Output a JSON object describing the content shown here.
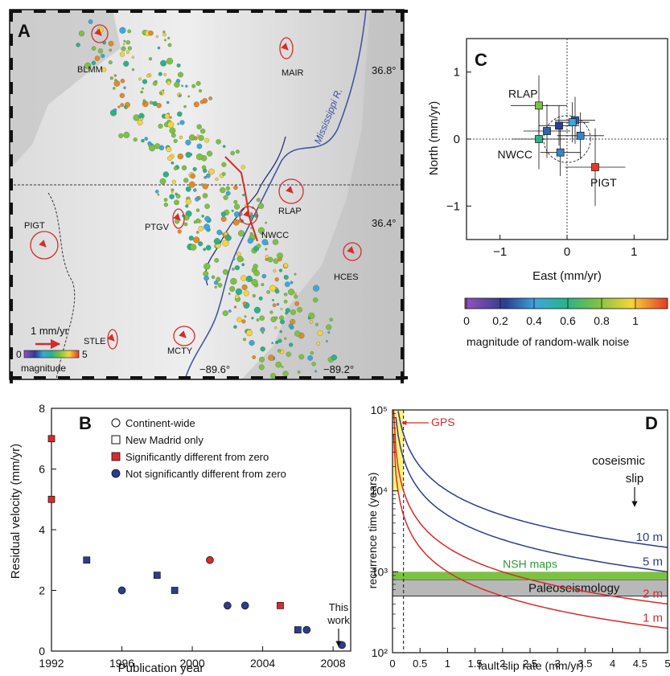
{
  "chart_data": [
    {
      "panel": "A",
      "type": "map",
      "panel_label": "A",
      "lat_labels": [
        "36.8°",
        "36.4°"
      ],
      "lon_labels": [
        "−89.6°",
        "−89.2°"
      ],
      "river_label": "Mississippi R.",
      "scale_label": "1 mm/yr",
      "colorbar": {
        "min_label": "0",
        "max_label": "5",
        "label": "magnitude"
      },
      "stations": [
        {
          "name": "BLMM"
        },
        {
          "name": "MAIR"
        },
        {
          "name": "PIGT"
        },
        {
          "name": "PTGV"
        },
        {
          "name": "NWCC"
        },
        {
          "name": "RLAP"
        },
        {
          "name": "HCES"
        },
        {
          "name": "STLE"
        },
        {
          "name": "MCTY"
        }
      ]
    },
    {
      "panel": "B",
      "type": "scatter",
      "panel_label": "B",
      "xlabel": "Publication year",
      "ylabel": "Residual velocity (mm/yr)",
      "xlim": [
        1992,
        2009
      ],
      "ylim": [
        0,
        8
      ],
      "xticks": [
        "1992",
        "1996",
        "2000",
        "2004",
        "2008"
      ],
      "yticks": [
        "0",
        "2",
        "4",
        "6",
        "8"
      ],
      "legend": [
        {
          "label": "Continent-wide",
          "marker": "circle-open"
        },
        {
          "label": "New Madrid only",
          "marker": "square-open"
        },
        {
          "label": "Significantly different from zero",
          "marker": "square-red"
        },
        {
          "label": "Not significantly different from zero",
          "marker": "circle-blue"
        }
      ],
      "annotation": [
        "This",
        "work"
      ],
      "points": [
        {
          "x": 1992,
          "y": 7.0,
          "shape": "square",
          "sig": true
        },
        {
          "x": 1992,
          "y": 5.0,
          "shape": "square",
          "sig": true
        },
        {
          "x": 1994,
          "y": 3.0,
          "shape": "square",
          "sig": false
        },
        {
          "x": 1996,
          "y": 2.0,
          "shape": "circle",
          "sig": false
        },
        {
          "x": 1998,
          "y": 2.5,
          "shape": "square",
          "sig": false
        },
        {
          "x": 1999,
          "y": 2.0,
          "shape": "square",
          "sig": false
        },
        {
          "x": 2001,
          "y": 3.0,
          "shape": "circle",
          "sig": true
        },
        {
          "x": 2002,
          "y": 1.5,
          "shape": "circle",
          "sig": false
        },
        {
          "x": 2003,
          "y": 1.5,
          "shape": "circle",
          "sig": false
        },
        {
          "x": 2005,
          "y": 1.5,
          "shape": "square",
          "sig": true
        },
        {
          "x": 2006,
          "y": 0.7,
          "shape": "square",
          "sig": false
        },
        {
          "x": 2006.5,
          "y": 0.7,
          "shape": "circle",
          "sig": false
        },
        {
          "x": 2008.5,
          "y": 0.2,
          "shape": "circle",
          "sig": false
        }
      ],
      "colors": {
        "sig": "#d62b2b",
        "nonsig": "#2b3d8f"
      }
    },
    {
      "panel": "C",
      "type": "scatter",
      "panel_label": "C",
      "xlabel": "East (mm/yr)",
      "ylabel": "North (mm/yr)",
      "xlim": [
        -1.5,
        1.5
      ],
      "ylim": [
        -1.5,
        1.5
      ],
      "xticks": [
        "−1",
        "0",
        "1"
      ],
      "yticks": [
        "−1",
        "0",
        "1"
      ],
      "colorbar": {
        "label": "magnitude of random-walk noise",
        "ticks": [
          "0",
          "0.2",
          "0.4",
          "0.6",
          "0.8",
          "1"
        ]
      },
      "points": [
        {
          "name": "RLAP",
          "x": -0.42,
          "y": 0.5,
          "ex": 0.42,
          "ey": 0.45,
          "color": "#7cc242"
        },
        {
          "name": "",
          "x": 0.12,
          "y": 0.28,
          "ex": 0.3,
          "ey": 0.35,
          "color": "#2f64b4"
        },
        {
          "name": "",
          "x": 0.08,
          "y": 0.25,
          "ex": 0.25,
          "ey": 0.3,
          "color": "#3ba7dd"
        },
        {
          "name": "",
          "x": -0.12,
          "y": 0.2,
          "ex": 0.3,
          "ey": 0.3,
          "color": "#2a3e93"
        },
        {
          "name": "",
          "x": -0.3,
          "y": 0.12,
          "ex": 0.35,
          "ey": 0.4,
          "color": "#2f64b4"
        },
        {
          "name": "",
          "x": 0.2,
          "y": 0.05,
          "ex": 0.35,
          "ey": 0.35,
          "color": "#3684cc"
        },
        {
          "name": "NWCC",
          "x": -0.42,
          "y": 0.0,
          "ex": 0.4,
          "ey": 0.45,
          "color": "#27b38a"
        },
        {
          "name": "",
          "x": -0.1,
          "y": -0.2,
          "ex": 0.3,
          "ey": 0.35,
          "color": "#3684cc"
        },
        {
          "name": "PIGT",
          "x": 0.42,
          "y": -0.42,
          "ex": 0.45,
          "ey": 0.58,
          "color": "#e53a25"
        }
      ],
      "circle_radius": 0.35
    },
    {
      "panel": "D",
      "type": "line",
      "panel_label": "D",
      "xlabel": "fault slip rate (mm/yr)",
      "ylabel": "recurrence time (years)",
      "xlim": [
        0,
        5
      ],
      "ylim": [
        100,
        100000
      ],
      "yscale": "log",
      "xticks": [
        "0",
        "0.5",
        "1",
        "1.5",
        "2",
        "2.5",
        "3",
        "3.5",
        "4",
        "4.5",
        "5"
      ],
      "yticks": [
        "10²",
        "10³",
        "10⁴",
        "10⁵"
      ],
      "gps_label": "GPS",
      "gps_rate": 0.2,
      "coseismic_label": [
        "coseismic",
        "slip"
      ],
      "nsh_label": "NSH maps",
      "nsh_range": [
        800,
        1000
      ],
      "paleo_label": "Paleoseismology",
      "paleo_range": [
        500,
        800
      ],
      "series": [
        {
          "name": "10 m",
          "slip_m": 10,
          "color": "#2b3d8f"
        },
        {
          "name": "5 m",
          "slip_m": 5,
          "color": "#2b3d8f"
        },
        {
          "name": "2 m",
          "slip_m": 2,
          "color": "#d62b2b"
        },
        {
          "name": "1 m",
          "slip_m": 1,
          "color": "#d62b2b"
        }
      ]
    }
  ]
}
